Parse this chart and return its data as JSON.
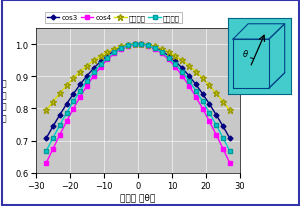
{
  "title": "",
  "xlabel": "傾き角 ［θ］",
  "ylabel": "膜\n厚\n出\n量",
  "xlim": [
    -30,
    30
  ],
  "ylim": [
    0.6,
    1.05
  ],
  "yticks": [
    0.6,
    0.7,
    0.8,
    0.9,
    1.0
  ],
  "xticks": [
    -30,
    -20,
    -10,
    0,
    10,
    20,
    30
  ],
  "angles": [
    -27,
    -25,
    -23,
    -21,
    -19,
    -17,
    -15,
    -13,
    -11,
    -9,
    -7,
    -5,
    -3,
    -1,
    1,
    3,
    5,
    7,
    9,
    11,
    13,
    15,
    17,
    19,
    21,
    23,
    25,
    27
  ],
  "series": {
    "cos3": {
      "color": "#000080",
      "marker": "D",
      "markersize": 2.5,
      "linewidth": 1.0,
      "label": "cos3",
      "power": 3.0
    },
    "cos4": {
      "color": "#FF00FF",
      "marker": "s",
      "markersize": 2.5,
      "linewidth": 1.0,
      "label": "cos4",
      "power": 4.0
    },
    "point": {
      "color": "#DDDD00",
      "marker": "*",
      "markersize": 4.5,
      "linewidth": 1.0,
      "label": "点蒸発源",
      "power": 2.0
    },
    "surface": {
      "color": "#00CCCC",
      "marker": "s",
      "markersize": 2.5,
      "linewidth": 1.0,
      "label": "面蒸発源",
      "power": 3.5
    }
  },
  "bg_color": "#C8C8C8",
  "fig_bg": "#FFFFFF",
  "border_color": "#3333AA",
  "inset_bg": "#44CCCC"
}
